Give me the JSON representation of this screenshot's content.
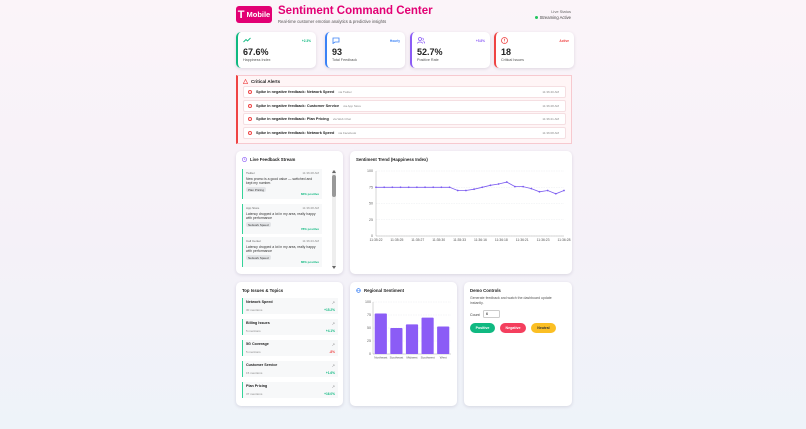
{
  "header": {
    "logo_letter": "T",
    "logo_text": "Mobile",
    "title": "Sentiment Command Center",
    "subtitle": "Real-time customer emotion analytics & predictive insights",
    "live_label": "Live Status",
    "live_status": "Streaming Active"
  },
  "kpis": [
    {
      "icon": "trend-up-icon",
      "badge": "+2.3%",
      "badge_color": "#10b981",
      "value": "67.6%",
      "label": "Happiness Index",
      "accent": "#10b981",
      "icon_color": "#10b981"
    },
    {
      "icon": "chat-icon",
      "badge": "Hourly",
      "badge_color": "#3b82f6",
      "value": "93",
      "label": "Total Feedback",
      "accent": "#3b82f6",
      "icon_color": "#3b82f6"
    },
    {
      "icon": "users-icon",
      "badge": "+5.8%",
      "badge_color": "#8b5cf6",
      "value": "52.7%",
      "label": "Positive Rate",
      "accent": "#8b5cf6",
      "icon_color": "#8b5cf6"
    },
    {
      "icon": "alert-circle-icon",
      "badge": "Active",
      "badge_color": "#ef4444",
      "value": "18",
      "label": "Critical Issues",
      "accent": "#ef4444",
      "icon_color": "#ef4444"
    }
  ],
  "alerts": {
    "title": "Critical Alerts",
    "items": [
      {
        "message": "Spike in negative feedback: Network Speed",
        "via": "via Twitter",
        "time": "11:36:40 AM"
      },
      {
        "message": "Spike in negative feedback: Customer Service",
        "via": "via App Store",
        "time": "11:36:28 AM"
      },
      {
        "message": "Spike in negative feedback: Plan Pricing",
        "via": "via Web Chat",
        "time": "11:36:21 AM"
      },
      {
        "message": "Spike in negative feedback: Network Speed",
        "via": "via Facebook",
        "time": "11:36:08 AM"
      }
    ]
  },
  "feed": {
    "title": "Live Feedback Stream",
    "items": [
      {
        "source": "Twitter",
        "time": "11:36:28 AM",
        "text": "New promo is a good value — switched and kept my number.",
        "tag": "Plan Pricing",
        "score": "82% positive"
      },
      {
        "source": "App Store",
        "time": "11:36:28 AM",
        "text": "Latency dropped a lot in my area, really happy with performance",
        "tag": "Network Speed",
        "score": "78% positive"
      },
      {
        "source": "Call Center",
        "time": "11:36:23 AM",
        "text": "Latency dropped a lot in my area, really happy with performance",
        "tag": "Network Speed",
        "score": "86% positive"
      }
    ]
  },
  "trend": {
    "title": "Sentiment Trend (Happiness Index)"
  },
  "issues": {
    "title": "Top Issues & Topics",
    "items": [
      {
        "name": "Network Speed",
        "mentions": "30 mentions",
        "change": "+15.2%",
        "change_color": "#10b981"
      },
      {
        "name": "Billing Issues",
        "mentions": "5 mentions",
        "change": "+4.1%",
        "change_color": "#10b981"
      },
      {
        "name": "5G Coverage",
        "mentions": "5 mentions",
        "change": "-8%",
        "change_color": "#ef4444"
      },
      {
        "name": "Customer Service",
        "mentions": "15 mentions",
        "change": "+1.6%",
        "change_color": "#10b981"
      },
      {
        "name": "Plan Pricing",
        "mentions": "37 mentions",
        "change": "+16.0%",
        "change_color": "#10b981"
      }
    ]
  },
  "regional": {
    "title": "Regional Sentiment"
  },
  "demo": {
    "title": "Demo Controls",
    "description": "Generate feedback and watch the dashboard update instantly.",
    "count_label": "Count",
    "count_value": "6",
    "positive_label": "Positive",
    "negative_label": "Negative",
    "neutral_label": "Neutral"
  },
  "chart_data": [
    {
      "type": "line",
      "title": "Sentiment Trend (Happiness Index)",
      "x": [
        "11:35:22",
        "11:35:25",
        "11:35:27",
        "11:35:30",
        "11:35:32",
        "11:35:34",
        "11:35:36",
        "11:35:39",
        "11:35:42",
        "11:35:45",
        "11:35:48",
        "11:35:51",
        "11:35:54",
        "11:35:56",
        "11:36:00",
        "11:36:03",
        "11:36:06",
        "11:36:10",
        "11:36:14",
        "11:36:18",
        "11:36:21",
        "11:36:24",
        "11:36:26",
        "11:36:28"
      ],
      "x_tick_labels": [
        "11:35:22",
        "11:35:25",
        "11:35:27",
        "11:35:30",
        "11:35:33",
        "11:36:16",
        "11:36:18",
        "11:36:21",
        "11:36:23",
        "11:36:28"
      ],
      "series": [
        {
          "values": [
            75,
            75,
            75,
            75,
            75,
            75,
            75,
            75,
            75,
            75,
            70,
            70,
            72,
            75,
            78,
            80,
            83,
            76,
            76,
            73,
            68,
            70,
            65,
            70
          ]
        }
      ],
      "ylim": [
        0,
        100
      ],
      "yticks": [
        0,
        25,
        50,
        75,
        100
      ],
      "color": "#7c5cf0"
    },
    {
      "type": "bar",
      "title": "Regional Sentiment",
      "categories": [
        "Northeast",
        "Southeast",
        "Midwest",
        "Southwest",
        "West"
      ],
      "values": [
        78,
        50,
        57,
        70,
        53
      ],
      "ylim": [
        0,
        100
      ],
      "yticks": [
        0,
        25,
        50,
        75,
        100
      ],
      "color": "#8b5cf6"
    }
  ]
}
